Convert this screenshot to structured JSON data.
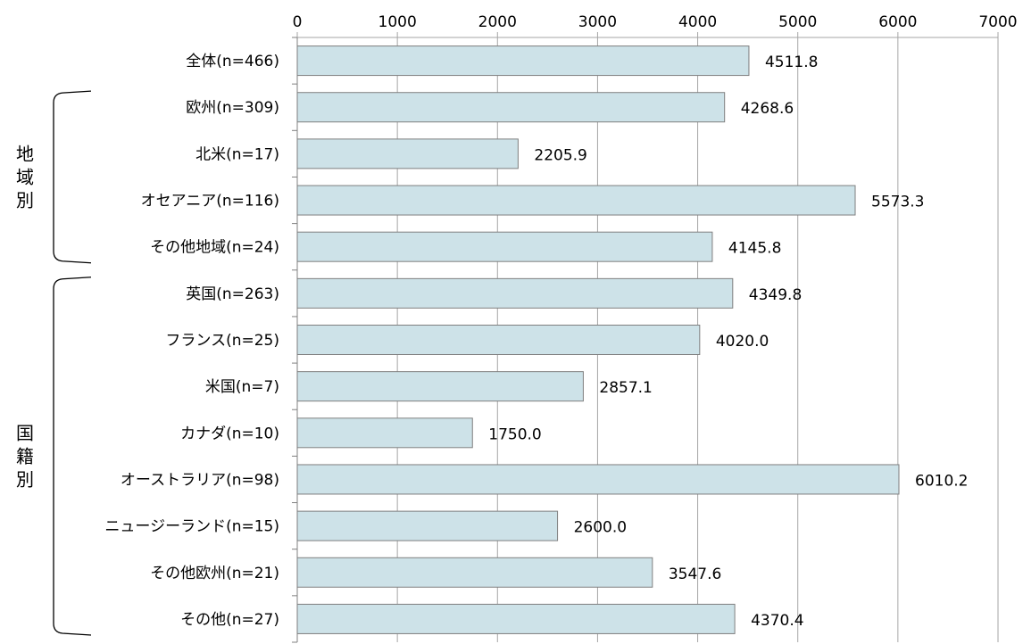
{
  "chart_data": {
    "type": "bar",
    "orientation": "horizontal",
    "x_axis_position": "top",
    "xlim": [
      0,
      7000
    ],
    "x_ticks": [
      "0",
      "1000",
      "2000",
      "3000",
      "4000",
      "5000",
      "6000",
      "7000"
    ],
    "grid": true,
    "bar_color": "#cde2e8",
    "bar_edge_color": "#7f7f7f",
    "categories": [
      "全体(n=466)",
      "欧州(n=309)",
      "北米(n=17)",
      "オセアニア(n=116)",
      "その他地域(n=24)",
      "英国(n=263)",
      "フランス(n=25)",
      "米国(n=7)",
      "カナダ(n=10)",
      "オーストラリア(n=98)",
      "ニュージーランド(n=15)",
      "その他欧州(n=21)",
      "その他(n=27)"
    ],
    "values": [
      4511.8,
      4268.6,
      2205.9,
      5573.3,
      4145.8,
      4349.8,
      4020.0,
      2857.1,
      1750.0,
      6010.2,
      2600.0,
      3547.6,
      4370.4
    ],
    "value_labels": [
      "4511.8",
      "4268.6",
      "2205.9",
      "5573.3",
      "4145.8",
      "4349.8",
      "4020.0",
      "2857.1",
      "1750.0",
      "6010.2",
      "2600.0",
      "3547.6",
      "4370.4"
    ],
    "groups": [
      {
        "label": "地域別",
        "from": 1,
        "to": 4
      },
      {
        "label": "国籍別",
        "from": 5,
        "to": 12
      }
    ]
  }
}
